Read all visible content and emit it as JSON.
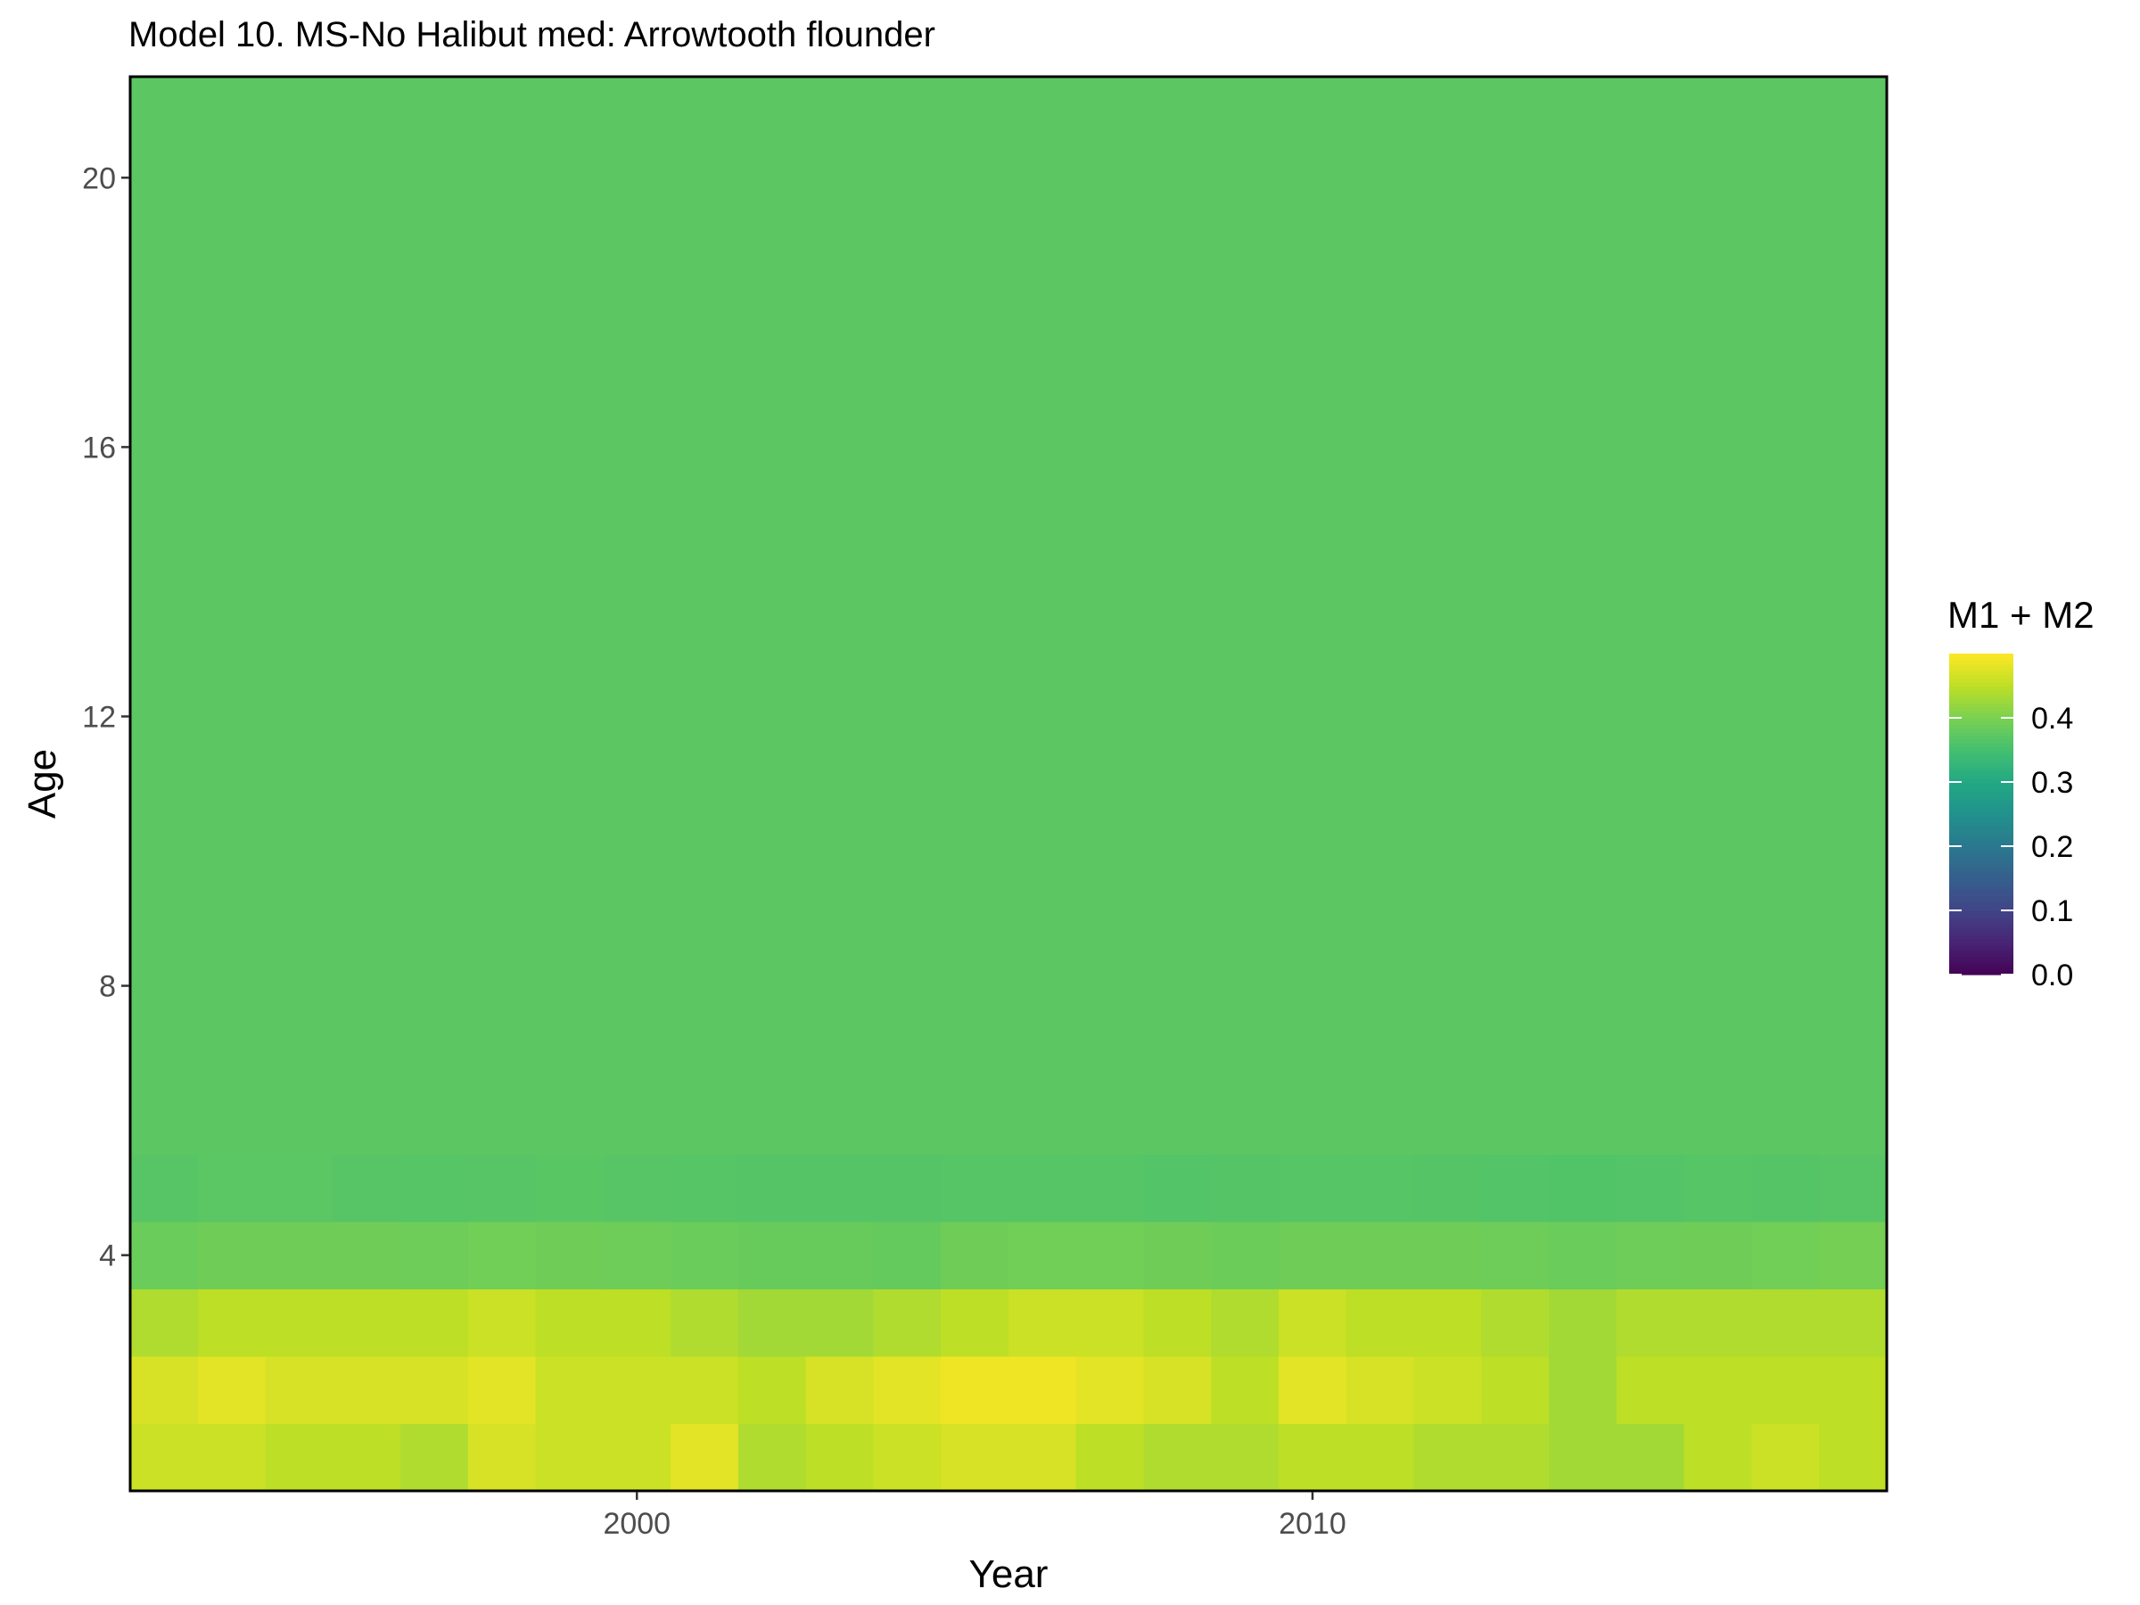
{
  "chart_data": {
    "type": "heatmap",
    "title": "Model 10. MS-No Halibut med: Arrowtooth flounder",
    "xlabel": "Year",
    "ylabel": "Age",
    "x_ticks": [
      2000,
      2010
    ],
    "y_ticks": [
      4,
      8,
      12,
      16,
      20
    ],
    "xlim": [
      1992.5,
      2018.5
    ],
    "ylim": [
      0.5,
      21.5
    ],
    "years": [
      1993,
      1994,
      1995,
      1996,
      1997,
      1998,
      1999,
      2000,
      2001,
      2002,
      2003,
      2004,
      2005,
      2006,
      2007,
      2008,
      2009,
      2010,
      2011,
      2012,
      2013,
      2014,
      2015,
      2016,
      2017,
      2018
    ],
    "ages": [
      1,
      2,
      3,
      4,
      5,
      6,
      7,
      8,
      9,
      10,
      11,
      12,
      13,
      14,
      15,
      16,
      17,
      18,
      19,
      20,
      21
    ],
    "age_rows": {
      "1": [
        0.46,
        0.46,
        0.45,
        0.45,
        0.44,
        0.47,
        0.46,
        0.46,
        0.48,
        0.44,
        0.45,
        0.46,
        0.47,
        0.47,
        0.45,
        0.44,
        0.44,
        0.45,
        0.45,
        0.44,
        0.44,
        0.43,
        0.43,
        0.45,
        0.46,
        0.45
      ],
      "2": [
        0.47,
        0.48,
        0.47,
        0.47,
        0.47,
        0.48,
        0.46,
        0.46,
        0.46,
        0.45,
        0.47,
        0.48,
        0.49,
        0.49,
        0.48,
        0.47,
        0.45,
        0.48,
        0.47,
        0.46,
        0.45,
        0.43,
        0.45,
        0.45,
        0.45,
        0.45
      ],
      "3": [
        0.44,
        0.45,
        0.45,
        0.45,
        0.45,
        0.46,
        0.45,
        0.45,
        0.44,
        0.43,
        0.43,
        0.44,
        0.45,
        0.46,
        0.46,
        0.45,
        0.44,
        0.46,
        0.45,
        0.45,
        0.44,
        0.43,
        0.44,
        0.44,
        0.44,
        0.44
      ],
      "4": [
        0.385,
        0.39,
        0.39,
        0.39,
        0.388,
        0.392,
        0.39,
        0.388,
        0.385,
        0.382,
        0.382,
        0.38,
        0.39,
        0.392,
        0.392,
        0.39,
        0.386,
        0.39,
        0.39,
        0.39,
        0.388,
        0.385,
        0.388,
        0.39,
        0.392,
        0.395
      ],
      "5": [
        0.368,
        0.37,
        0.37,
        0.368,
        0.366,
        0.368,
        0.369,
        0.368,
        0.366,
        0.365,
        0.365,
        0.365,
        0.366,
        0.366,
        0.366,
        0.364,
        0.365,
        0.366,
        0.366,
        0.365,
        0.364,
        0.363,
        0.364,
        0.366,
        0.365,
        0.368
      ]
    },
    "older_age_value": 0.372,
    "colorbar": {
      "title": "M1 + M2",
      "range": [
        0.0,
        0.5
      ],
      "ticks": [
        0.0,
        0.1,
        0.2,
        0.3,
        0.4
      ],
      "tick_labels": [
        "0.0",
        "0.1",
        "0.2",
        "0.3",
        "0.4"
      ],
      "colormap": "viridis"
    }
  }
}
